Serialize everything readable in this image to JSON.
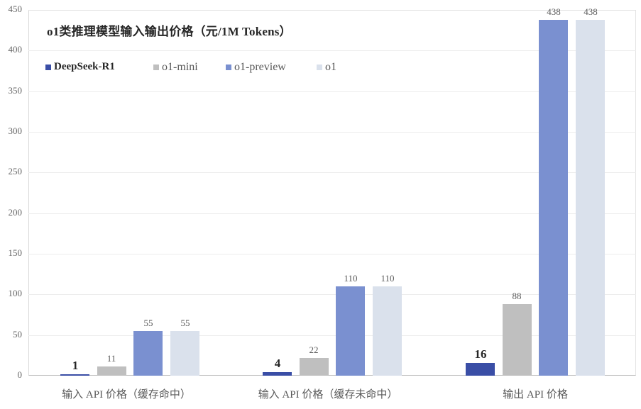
{
  "chart_data": {
    "type": "bar",
    "title": "o1类推理模型输入输出价格（元/1M Tokens）",
    "xlabel": "",
    "ylabel": "",
    "ylim": [
      0,
      450
    ],
    "yticks": [
      0,
      50,
      100,
      150,
      200,
      250,
      300,
      350,
      400,
      450
    ],
    "grid": true,
    "legend_position": "top-left inside",
    "categories": [
      "输入 API 价格（缓存命中）",
      "输入 API 价格（缓存未命中）",
      "输出 API 价格"
    ],
    "series": [
      {
        "name": "DeepSeek-R1",
        "color": "#3a4ea6",
        "values": [
          1,
          4,
          16
        ]
      },
      {
        "name": "o1-mini",
        "color": "#bfbfbf",
        "values": [
          11,
          22,
          88
        ]
      },
      {
        "name": "o1-preview",
        "color": "#7a90d0",
        "values": [
          55,
          110,
          438
        ]
      },
      {
        "name": "o1",
        "color": "#dae1ec",
        "values": [
          55,
          110,
          438
        ]
      }
    ]
  },
  "labels": {
    "title": "o1类推理模型输入输出价格（元/1M Tokens）",
    "yticks": [
      "0",
      "50",
      "100",
      "150",
      "200",
      "250",
      "300",
      "350",
      "400",
      "450"
    ],
    "legend": [
      "DeepSeek-R1",
      "o1-mini",
      "o1-preview",
      "o1"
    ],
    "categories": [
      "输入 API 价格（缓存命中）",
      "输入 API 价格（缓存未命中）",
      "输出 API 价格"
    ],
    "values": [
      [
        "1",
        "11",
        "55",
        "55"
      ],
      [
        "4",
        "22",
        "110",
        "110"
      ],
      [
        "16",
        "88",
        "438",
        "438"
      ]
    ]
  }
}
